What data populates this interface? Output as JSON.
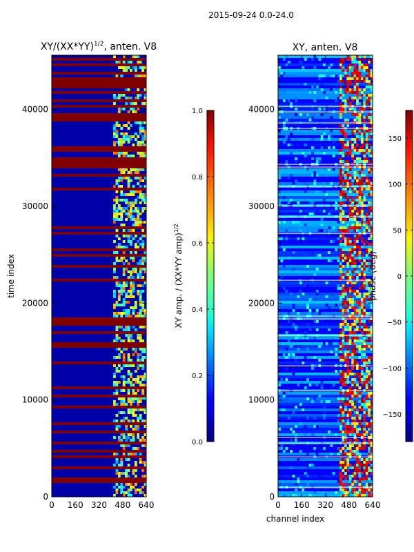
{
  "figure": {
    "suptitle": "2015-09-24 0.0-24.0"
  },
  "chart_data": [
    {
      "type": "heatmap",
      "title": "XY/(XX*YY)^1/2, anten. V8",
      "title_main": "XY/(XX*YY)",
      "title_sup": "1/2",
      "title_tail": ", anten. V8",
      "xlabel": "",
      "ylabel": "time index",
      "xlim": [
        0,
        640
      ],
      "ylim": [
        0,
        45600
      ],
      "xticks": [
        0,
        160,
        320,
        480,
        640
      ],
      "yticks": [
        0,
        10000,
        20000,
        30000,
        40000
      ],
      "colorbar": {
        "label_main": "XY amp. / (XX*YY amp)",
        "label_sup": "1/2",
        "range": [
          0.0,
          1.0
        ],
        "ticks": [
          "0.0",
          "0.2",
          "0.4",
          "0.6",
          "0.8",
          "1.0"
        ]
      }
    },
    {
      "type": "heatmap",
      "title": "XY, anten. V8",
      "xlabel": "channel index",
      "ylabel": "",
      "xlim": [
        0,
        640
      ],
      "ylim": [
        0,
        45600
      ],
      "xticks": [
        0,
        160,
        320,
        480,
        640
      ],
      "yticks": [
        0,
        10000,
        20000,
        30000,
        40000
      ],
      "colorbar": {
        "label": "phase (deg)",
        "range": [
          -180,
          180
        ],
        "ticks": [
          "−150",
          "−100",
          "−50",
          "0",
          "50",
          "100",
          "150"
        ]
      }
    }
  ]
}
